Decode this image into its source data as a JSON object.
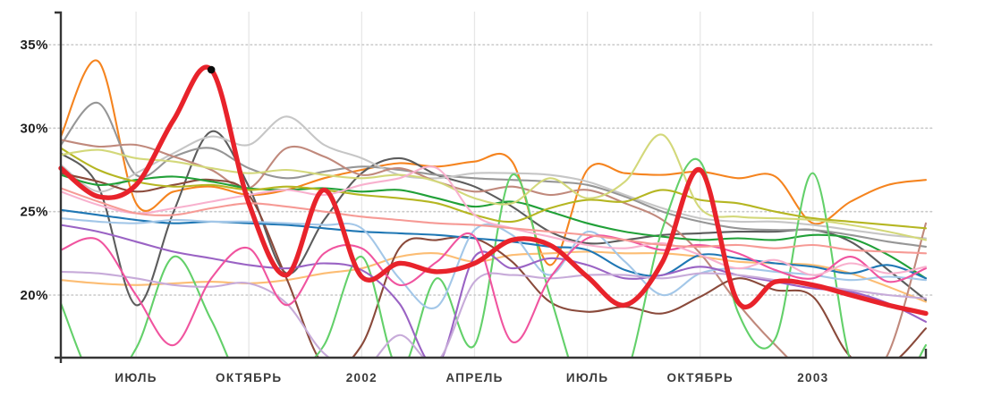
{
  "background": "#ffffff",
  "axis_color": "#353535",
  "gridline_dotted_color": "#c9c9c9",
  "gridline_vertical_color": "#e7e7e7",
  "chart_data": {
    "type": "line",
    "title": "",
    "xlabel": "",
    "ylabel": "",
    "x_count": 24,
    "x_tick_labels": [
      {
        "index": 2,
        "label": "ИЮЛЬ"
      },
      {
        "index": 5,
        "label": "ОКТЯБРЬ"
      },
      {
        "index": 8,
        "label": "2002"
      },
      {
        "index": 11,
        "label": "АПРЕЛЬ"
      },
      {
        "index": 14,
        "label": "ИЮЛЬ"
      },
      {
        "index": 17,
        "label": "ОКТЯБРЬ"
      },
      {
        "index": 20,
        "label": "2003"
      }
    ],
    "y_tick_labels": [
      {
        "value": 35,
        "label": "35%"
      },
      {
        "value": 30,
        "label": "30%"
      },
      {
        "value": 25,
        "label": "25%"
      },
      {
        "value": 20,
        "label": "20%"
      }
    ],
    "ylim_visible": [
      16.2,
      36.9
    ],
    "grid": {
      "horizontal": "dotted",
      "vertical": "solid",
      "legend": "none"
    },
    "marker": {
      "series": "highlighted-red",
      "x_index": 4,
      "value": 33.5,
      "color": "#0a0a0a",
      "radius": 4.3
    },
    "series": [
      {
        "name": "orange",
        "color": "#f5841f",
        "width": 2.1,
        "highlighted": false,
        "values": [
          29.5,
          34.0,
          25.5,
          26.2,
          26.5,
          26.0,
          26.3,
          27.0,
          27.5,
          27.9,
          27.7,
          28.0,
          28.0,
          21.8,
          27.5,
          27.3,
          27.2,
          27.4,
          27.0,
          27.1,
          24.3,
          25.6,
          26.6,
          26.9
        ]
      },
      {
        "name": "light-orange",
        "color": "#fcbd74",
        "width": 2.1,
        "highlighted": false,
        "values": [
          20.9,
          20.7,
          20.6,
          20.7,
          20.8,
          20.7,
          20.9,
          21.3,
          21.6,
          22.3,
          22.5,
          22.0,
          22.4,
          22.5,
          22.6,
          22.5,
          22.5,
          22.3,
          22.0,
          21.9,
          21.8,
          21.3,
          20.5,
          19.6
        ]
      },
      {
        "name": "dark-gray",
        "color": "#5c5c5c",
        "width": 2.1,
        "highlighted": false,
        "values": [
          28.5,
          26.5,
          19.4,
          25.0,
          29.8,
          26.5,
          21.3,
          24.5,
          27.3,
          28.2,
          27.2,
          26.5,
          25.3,
          23.8,
          23.1,
          23.3,
          23.6,
          23.7,
          23.8,
          23.8,
          23.9,
          23.2,
          21.5,
          19.7
        ]
      },
      {
        "name": "gray",
        "color": "#969696",
        "width": 2.1,
        "highlighted": false,
        "values": [
          29.0,
          31.5,
          27.2,
          28.3,
          28.8,
          27.6,
          27.0,
          27.4,
          27.7,
          27.5,
          27.2,
          27.0,
          26.9,
          26.8,
          26.6,
          25.9,
          25.0,
          24.4,
          24.0,
          23.9,
          23.9,
          23.6,
          23.2,
          22.9
        ]
      },
      {
        "name": "light-gray",
        "color": "#c6c6c6",
        "width": 2.1,
        "highlighted": false,
        "values": [
          27.8,
          26.2,
          27.3,
          28.5,
          29.5,
          29.0,
          30.7,
          29.0,
          28.2,
          27.2,
          27.0,
          27.3,
          27.3,
          27.2,
          26.8,
          26.0,
          25.2,
          24.6,
          24.4,
          24.4,
          24.2,
          23.9,
          23.6,
          23.4
        ]
      },
      {
        "name": "rosy-brown",
        "color": "#c0897c",
        "width": 2.1,
        "highlighted": false,
        "values": [
          29.3,
          28.9,
          29.0,
          28.3,
          27.5,
          26.4,
          28.8,
          28.3,
          27.2,
          27.6,
          26.8,
          26.2,
          26.5,
          26.0,
          26.3,
          25.5,
          24.5,
          22.5,
          19.5,
          17.0,
          15.0,
          14.8,
          16.5,
          24.3
        ]
      },
      {
        "name": "brown",
        "color": "#8a4a3b",
        "width": 2.1,
        "highlighted": false,
        "values": [
          27.3,
          26.8,
          26.2,
          26.6,
          26.9,
          26.0,
          21.0,
          15.8,
          17.0,
          22.8,
          23.3,
          23.4,
          22.0,
          19.6,
          19.0,
          19.3,
          18.9,
          19.9,
          21.0,
          20.3,
          19.9,
          16.3,
          15.8,
          18.0
        ]
      },
      {
        "name": "green",
        "color": "#21a038",
        "width": 2.1,
        "highlighted": false,
        "values": [
          27.2,
          26.6,
          26.9,
          27.1,
          26.8,
          26.4,
          26.3,
          26.4,
          26.2,
          26.3,
          25.8,
          25.3,
          25.6,
          25.0,
          24.3,
          23.8,
          23.5,
          23.3,
          23.4,
          23.3,
          23.6,
          23.4,
          22.4,
          21.0
        ]
      },
      {
        "name": "bright-green",
        "color": "#63d06a",
        "width": 2.1,
        "highlighted": false,
        "values": [
          19.5,
          14.5,
          16.8,
          22.3,
          18.5,
          14.0,
          15.0,
          17.0,
          22.3,
          15.5,
          21.0,
          17.0,
          27.2,
          20.0,
          13.5,
          15.0,
          24.0,
          28.0,
          19.0,
          17.4,
          27.3,
          16.0,
          13.5,
          17.0
        ]
      },
      {
        "name": "olive",
        "color": "#b5b622",
        "width": 2.1,
        "highlighted": false,
        "values": [
          28.8,
          27.5,
          26.8,
          26.5,
          26.6,
          26.3,
          26.5,
          26.3,
          26.0,
          25.8,
          25.5,
          24.8,
          24.4,
          25.2,
          25.7,
          25.6,
          26.3,
          25.7,
          25.5,
          25.0,
          24.6,
          24.4,
          24.2,
          24.0
        ]
      },
      {
        "name": "light-olive",
        "color": "#d3d87a",
        "width": 2.1,
        "highlighted": false,
        "values": [
          28.4,
          28.7,
          28.2,
          28.0,
          27.6,
          27.3,
          27.5,
          27.2,
          27.0,
          27.2,
          26.8,
          25.8,
          25.5,
          27.0,
          25.8,
          26.8,
          29.6,
          25.2,
          24.7,
          24.6,
          24.5,
          24.2,
          23.8,
          23.3
        ]
      },
      {
        "name": "blue",
        "color": "#1f77b4",
        "width": 2.1,
        "highlighted": false,
        "values": [
          25.1,
          24.8,
          24.5,
          24.3,
          24.4,
          24.3,
          24.2,
          24.0,
          23.8,
          23.7,
          23.6,
          23.4,
          23.2,
          22.9,
          22.7,
          21.5,
          21.2,
          22.4,
          22.2,
          21.9,
          21.7,
          21.3,
          21.8,
          21.0
        ]
      },
      {
        "name": "light-blue",
        "color": "#a3c7e8",
        "width": 2.1,
        "highlighted": false,
        "values": [
          24.6,
          24.4,
          24.3,
          24.5,
          24.4,
          24.4,
          24.3,
          24.2,
          24.0,
          21.0,
          19.3,
          23.9,
          23.6,
          21.2,
          23.8,
          22.0,
          20.0,
          21.3,
          21.6,
          21.4,
          21.2,
          20.9,
          21.1,
          20.9
        ]
      },
      {
        "name": "purple",
        "color": "#9a63c4",
        "width": 2.1,
        "highlighted": false,
        "values": [
          24.2,
          23.8,
          23.2,
          22.6,
          22.2,
          21.8,
          21.6,
          21.9,
          21.5,
          19.5,
          15.8,
          22.3,
          21.6,
          22.2,
          21.8,
          21.0,
          21.2,
          21.7,
          21.2,
          20.8,
          20.4,
          20.2,
          19.5,
          18.4
        ]
      },
      {
        "name": "light-purple",
        "color": "#c7abd9",
        "width": 2.1,
        "highlighted": false,
        "values": [
          21.4,
          21.3,
          21.0,
          20.6,
          20.5,
          20.7,
          19.5,
          16.5,
          15.5,
          17.6,
          16.0,
          20.8,
          21.2,
          21.0,
          21.2,
          21.2,
          21.0,
          21.3,
          21.2,
          20.9,
          20.6,
          20.3,
          20.0,
          19.8
        ]
      },
      {
        "name": "magenta-pink",
        "color": "#f0549f",
        "width": 2.1,
        "highlighted": false,
        "values": [
          22.7,
          23.3,
          20.0,
          17.0,
          21.0,
          22.8,
          19.4,
          22.5,
          22.8,
          20.6,
          22.0,
          23.5,
          17.2,
          21.0,
          23.4,
          23.3,
          22.7,
          23.0,
          22.5,
          21.5,
          21.0,
          22.3,
          20.8,
          21.6
        ]
      },
      {
        "name": "light-pink",
        "color": "#f8b1ce",
        "width": 2.1,
        "highlighted": false,
        "values": [
          26.2,
          25.4,
          24.9,
          25.2,
          25.6,
          26.0,
          26.3,
          26.0,
          26.6,
          27.0,
          27.6,
          24.8,
          24.0,
          23.5,
          23.0,
          22.8,
          23.1,
          22.4,
          21.6,
          22.1,
          21.2,
          21.9,
          21.3,
          21.7
        ]
      },
      {
        "name": "salmon",
        "color": "#f69a95",
        "width": 2.1,
        "highlighted": false,
        "values": [
          26.4,
          25.6,
          24.9,
          24.8,
          25.2,
          25.5,
          25.3,
          25.0,
          24.7,
          24.5,
          24.3,
          24.2,
          24.0,
          23.8,
          23.6,
          23.3,
          23.0,
          22.9,
          23.0,
          22.8,
          23.0,
          22.7,
          22.6,
          22.5
        ]
      },
      {
        "name": "highlighted-red",
        "color": "#e8232b",
        "width": 5.4,
        "highlighted": true,
        "values": [
          27.6,
          25.9,
          26.6,
          30.5,
          33.5,
          25.5,
          21.2,
          26.3,
          21.1,
          21.9,
          21.4,
          21.9,
          23.3,
          23.0,
          21.1,
          19.4,
          22.0,
          27.5,
          19.6,
          20.8,
          20.6,
          20.0,
          19.4,
          18.9
        ]
      }
    ]
  }
}
